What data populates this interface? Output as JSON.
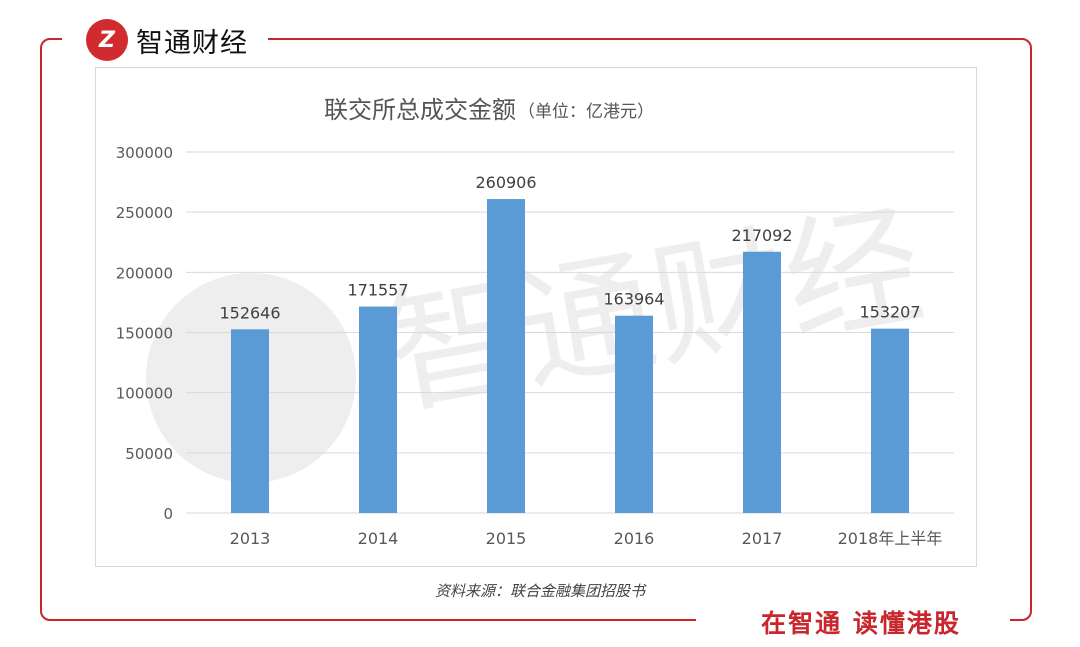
{
  "brand": {
    "logo_text": "Z",
    "name": "智通财经"
  },
  "slogan": "在智通 读懂港股",
  "source": "资料来源：联合金融集团招股书",
  "watermark": "智通财经",
  "colors": {
    "accent": "#c8272d",
    "bar": "#5b9bd5"
  },
  "chart_data": {
    "type": "bar",
    "title": "联交所总成交金额",
    "subtitle": "（单位：亿港元）",
    "categories": [
      "2013",
      "2014",
      "2015",
      "2016",
      "2017",
      "2018年上半年"
    ],
    "values": [
      152646,
      171557,
      260906,
      163964,
      217092,
      153207
    ],
    "data_labels": [
      "152646",
      "171557",
      "260906",
      "163964",
      "217092",
      "153207"
    ],
    "ylim": [
      0,
      300000
    ],
    "yticks": [
      "0",
      "50000",
      "100000",
      "150000",
      "200000",
      "250000",
      "300000"
    ],
    "xlabel": "",
    "ylabel": "",
    "grid": true
  }
}
